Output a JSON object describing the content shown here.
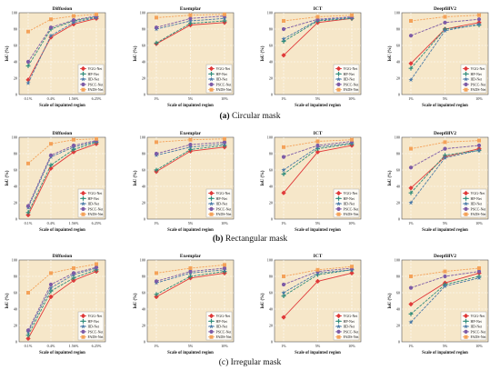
{
  "captions": [
    {
      "label": "(a)",
      "text": "Circular mask"
    },
    {
      "label": "(b)",
      "text": "Rectangular mask"
    },
    {
      "label": "(c)",
      "text": "Irregular mask"
    }
  ],
  "legend": [
    "VGG-Net",
    "HP-Net",
    "IID-Net",
    "PSCC-Net",
    "FADS-Net"
  ],
  "colors": [
    "#e03a3a",
    "#2e8b7a",
    "#4a7aa8",
    "#7d5ba6",
    "#f4a259"
  ],
  "markers": [
    "diamond",
    "plus",
    "star",
    "circle",
    "square"
  ],
  "ylabel": "IoU (%)",
  "xlabel": "Scale of inpainted region",
  "chart_data": [
    {
      "type": "line",
      "title": "Diffusion",
      "categories": [
        "0.1%",
        "0.4%",
        "1.56%",
        "6.25%"
      ],
      "ylim": [
        0,
        100
      ],
      "series": [
        {
          "name": "VGG-Net",
          "values": [
            18,
            70,
            86,
            93
          ]
        },
        {
          "name": "HP-Net",
          "values": [
            35,
            80,
            90,
            95
          ]
        },
        {
          "name": "IID-Net",
          "values": [
            14,
            72,
            88,
            94
          ]
        },
        {
          "name": "PSCC-Net",
          "values": [
            40,
            82,
            91,
            96
          ]
        },
        {
          "name": "FADS-Net",
          "values": [
            77,
            92,
            96,
            98
          ]
        }
      ]
    },
    {
      "type": "line",
      "title": "Exemplar",
      "categories": [
        "1%",
        "5%",
        "10%"
      ],
      "ylim": [
        0,
        100
      ],
      "series": [
        {
          "name": "VGG-Net",
          "values": [
            62,
            85,
            88
          ]
        },
        {
          "name": "HP-Net",
          "values": [
            63,
            87,
            90
          ]
        },
        {
          "name": "IID-Net",
          "values": [
            80,
            90,
            93
          ]
        },
        {
          "name": "PSCC-Net",
          "values": [
            82,
            93,
            96
          ]
        },
        {
          "name": "FADS-Net",
          "values": [
            94,
            97,
            98
          ]
        }
      ]
    },
    {
      "type": "line",
      "title": "ICT",
      "categories": [
        "1%",
        "5%",
        "10%"
      ],
      "ylim": [
        0,
        100
      ],
      "series": [
        {
          "name": "VGG-Net",
          "values": [
            48,
            88,
            93
          ]
        },
        {
          "name": "HP-Net",
          "values": [
            65,
            90,
            93
          ]
        },
        {
          "name": "IID-Net",
          "values": [
            68,
            91,
            94
          ]
        },
        {
          "name": "PSCC-Net",
          "values": [
            80,
            92,
            95
          ]
        },
        {
          "name": "FADS-Net",
          "values": [
            90,
            95,
            97
          ]
        }
      ]
    },
    {
      "type": "line",
      "title": "DeepfillV2",
      "categories": [
        "1%",
        "5%",
        "10%"
      ],
      "ylim": [
        0,
        100
      ],
      "series": [
        {
          "name": "VGG-Net",
          "values": [
            38,
            80,
            88
          ]
        },
        {
          "name": "HP-Net",
          "values": [
            32,
            80,
            85
          ]
        },
        {
          "name": "IID-Net",
          "values": [
            18,
            78,
            86
          ]
        },
        {
          "name": "PSCC-Net",
          "values": [
            72,
            88,
            92
          ]
        },
        {
          "name": "FADS-Net",
          "values": [
            90,
            95,
            97
          ]
        }
      ]
    },
    {
      "type": "line",
      "title": "Diffusion",
      "categories": [
        "0.1%",
        "0.4%",
        "1.56%",
        "6.25%"
      ],
      "ylim": [
        0,
        100
      ],
      "series": [
        {
          "name": "VGG-Net",
          "values": [
            5,
            62,
            82,
            92
          ]
        },
        {
          "name": "HP-Net",
          "values": [
            8,
            66,
            85,
            94
          ]
        },
        {
          "name": "IID-Net",
          "values": [
            14,
            76,
            88,
            95
          ]
        },
        {
          "name": "PSCC-Net",
          "values": [
            16,
            78,
            90,
            96
          ]
        },
        {
          "name": "FADS-Net",
          "values": [
            68,
            92,
            97,
            98
          ]
        }
      ]
    },
    {
      "type": "line",
      "title": "Exemplar",
      "categories": [
        "1%",
        "5%",
        "10%"
      ],
      "ylim": [
        0,
        100
      ],
      "series": [
        {
          "name": "VGG-Net",
          "values": [
            58,
            83,
            88
          ]
        },
        {
          "name": "HP-Net",
          "values": [
            60,
            85,
            90
          ]
        },
        {
          "name": "IID-Net",
          "values": [
            78,
            88,
            92
          ]
        },
        {
          "name": "PSCC-Net",
          "values": [
            80,
            91,
            94
          ]
        },
        {
          "name": "FADS-Net",
          "values": [
            94,
            97,
            98
          ]
        }
      ]
    },
    {
      "type": "line",
      "title": "ICT",
      "categories": [
        "1%",
        "5%",
        "10%"
      ],
      "ylim": [
        0,
        100
      ],
      "series": [
        {
          "name": "VGG-Net",
          "values": [
            32,
            82,
            90
          ]
        },
        {
          "name": "HP-Net",
          "values": [
            55,
            86,
            92
          ]
        },
        {
          "name": "IID-Net",
          "values": [
            60,
            88,
            93
          ]
        },
        {
          "name": "PSCC-Net",
          "values": [
            76,
            90,
            95
          ]
        },
        {
          "name": "FADS-Net",
          "values": [
            88,
            95,
            97
          ]
        }
      ]
    },
    {
      "type": "line",
      "title": "DeepfillV2",
      "categories": [
        "1%",
        "5%",
        "10%"
      ],
      "ylim": [
        0,
        100
      ],
      "series": [
        {
          "name": "VGG-Net",
          "values": [
            38,
            76,
            86
          ]
        },
        {
          "name": "HP-Net",
          "values": [
            32,
            78,
            84
          ]
        },
        {
          "name": "IID-Net",
          "values": [
            20,
            75,
            84
          ]
        },
        {
          "name": "PSCC-Net",
          "values": [
            63,
            86,
            90
          ]
        },
        {
          "name": "FADS-Net",
          "values": [
            86,
            94,
            96
          ]
        }
      ]
    },
    {
      "type": "line",
      "title": "Diffusion",
      "categories": [
        "0.1%",
        "0.4%",
        "1.56%",
        "6.25%"
      ],
      "ylim": [
        0,
        100
      ],
      "series": [
        {
          "name": "VGG-Net",
          "values": [
            4,
            55,
            75,
            86
          ]
        },
        {
          "name": "HP-Net",
          "values": [
            8,
            62,
            78,
            88
          ]
        },
        {
          "name": "IID-Net",
          "values": [
            12,
            66,
            82,
            90
          ]
        },
        {
          "name": "PSCC-Net",
          "values": [
            14,
            70,
            84,
            91
          ]
        },
        {
          "name": "FADS-Net",
          "values": [
            60,
            84,
            90,
            95
          ]
        }
      ]
    },
    {
      "type": "line",
      "title": "Exemplar",
      "categories": [
        "1%",
        "5%",
        "10%"
      ],
      "ylim": [
        0,
        100
      ],
      "series": [
        {
          "name": "VGG-Net",
          "values": [
            55,
            78,
            84
          ]
        },
        {
          "name": "HP-Net",
          "values": [
            58,
            80,
            86
          ]
        },
        {
          "name": "IID-Net",
          "values": [
            72,
            84,
            88
          ]
        },
        {
          "name": "PSCC-Net",
          "values": [
            74,
            86,
            90
          ]
        },
        {
          "name": "FADS-Net",
          "values": [
            84,
            90,
            94
          ]
        }
      ]
    },
    {
      "type": "line",
      "title": "ICT",
      "categories": [
        "1%",
        "5%",
        "10%"
      ],
      "ylim": [
        0,
        100
      ],
      "series": [
        {
          "name": "VGG-Net",
          "values": [
            30,
            74,
            84
          ]
        },
        {
          "name": "HP-Net",
          "values": [
            56,
            82,
            88
          ]
        },
        {
          "name": "IID-Net",
          "values": [
            60,
            84,
            88
          ]
        },
        {
          "name": "PSCC-Net",
          "values": [
            70,
            86,
            90
          ]
        },
        {
          "name": "FADS-Net",
          "values": [
            80,
            88,
            92
          ]
        }
      ]
    },
    {
      "type": "line",
      "title": "DeepfillV2",
      "categories": [
        "1%",
        "5%",
        "10%"
      ],
      "ylim": [
        0,
        100
      ],
      "series": [
        {
          "name": "VGG-Net",
          "values": [
            46,
            72,
            84
          ]
        },
        {
          "name": "HP-Net",
          "values": [
            34,
            70,
            80
          ]
        },
        {
          "name": "IID-Net",
          "values": [
            24,
            68,
            78
          ]
        },
        {
          "name": "PSCC-Net",
          "values": [
            66,
            80,
            86
          ]
        },
        {
          "name": "FADS-Net",
          "values": [
            80,
            86,
            90
          ]
        }
      ]
    }
  ]
}
